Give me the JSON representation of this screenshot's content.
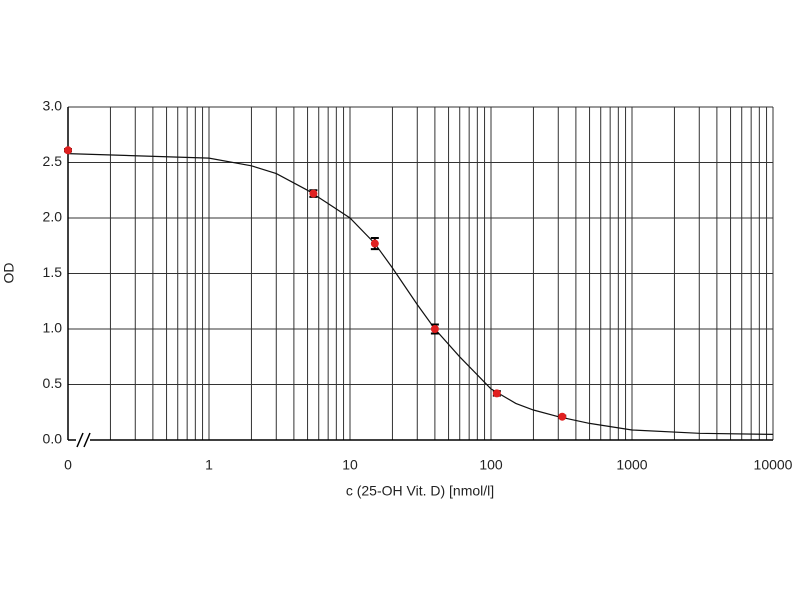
{
  "chart_data": {
    "type": "scatter",
    "x_label": "c (25-OH Vit. D) [nmol/l]",
    "y_label": "OD",
    "xscale": "log",
    "axis_break": true,
    "grid": true,
    "xlim": [
      0,
      10000
    ],
    "xticks": [
      0,
      1,
      10,
      100,
      1000,
      10000
    ],
    "ylim": [
      0,
      3
    ],
    "yticks": [
      {
        "value": 0,
        "label": "0.0"
      },
      0.5,
      {
        "value": 1,
        "label": "1.0"
      },
      1.5,
      {
        "value": 2,
        "label": "2.0"
      },
      2.5,
      {
        "value": 3,
        "label": "3.0"
      }
    ],
    "series": [
      {
        "color": "#e02020",
        "x": [
          0,
          5.5,
          15,
          40,
          110,
          320
        ],
        "values": [
          2.61,
          2.22,
          1.77,
          1.0,
          0.42,
          0.21
        ],
        "errors": [
          0.01,
          0.03,
          0.05,
          0.04,
          0.02,
          0.01
        ]
      }
    ],
    "fit": {
      "color": "#111111",
      "x": [
        0,
        1,
        2,
        3,
        5,
        7,
        10,
        15,
        20,
        30,
        40,
        60,
        100,
        150,
        200,
        300,
        500,
        1000,
        3000,
        10000
      ],
      "values": [
        2.58,
        2.54,
        2.47,
        2.4,
        2.25,
        2.13,
        2.0,
        1.77,
        1.55,
        1.22,
        1.0,
        0.75,
        0.46,
        0.33,
        0.27,
        0.21,
        0.15,
        0.09,
        0.06,
        0.05
      ]
    }
  }
}
